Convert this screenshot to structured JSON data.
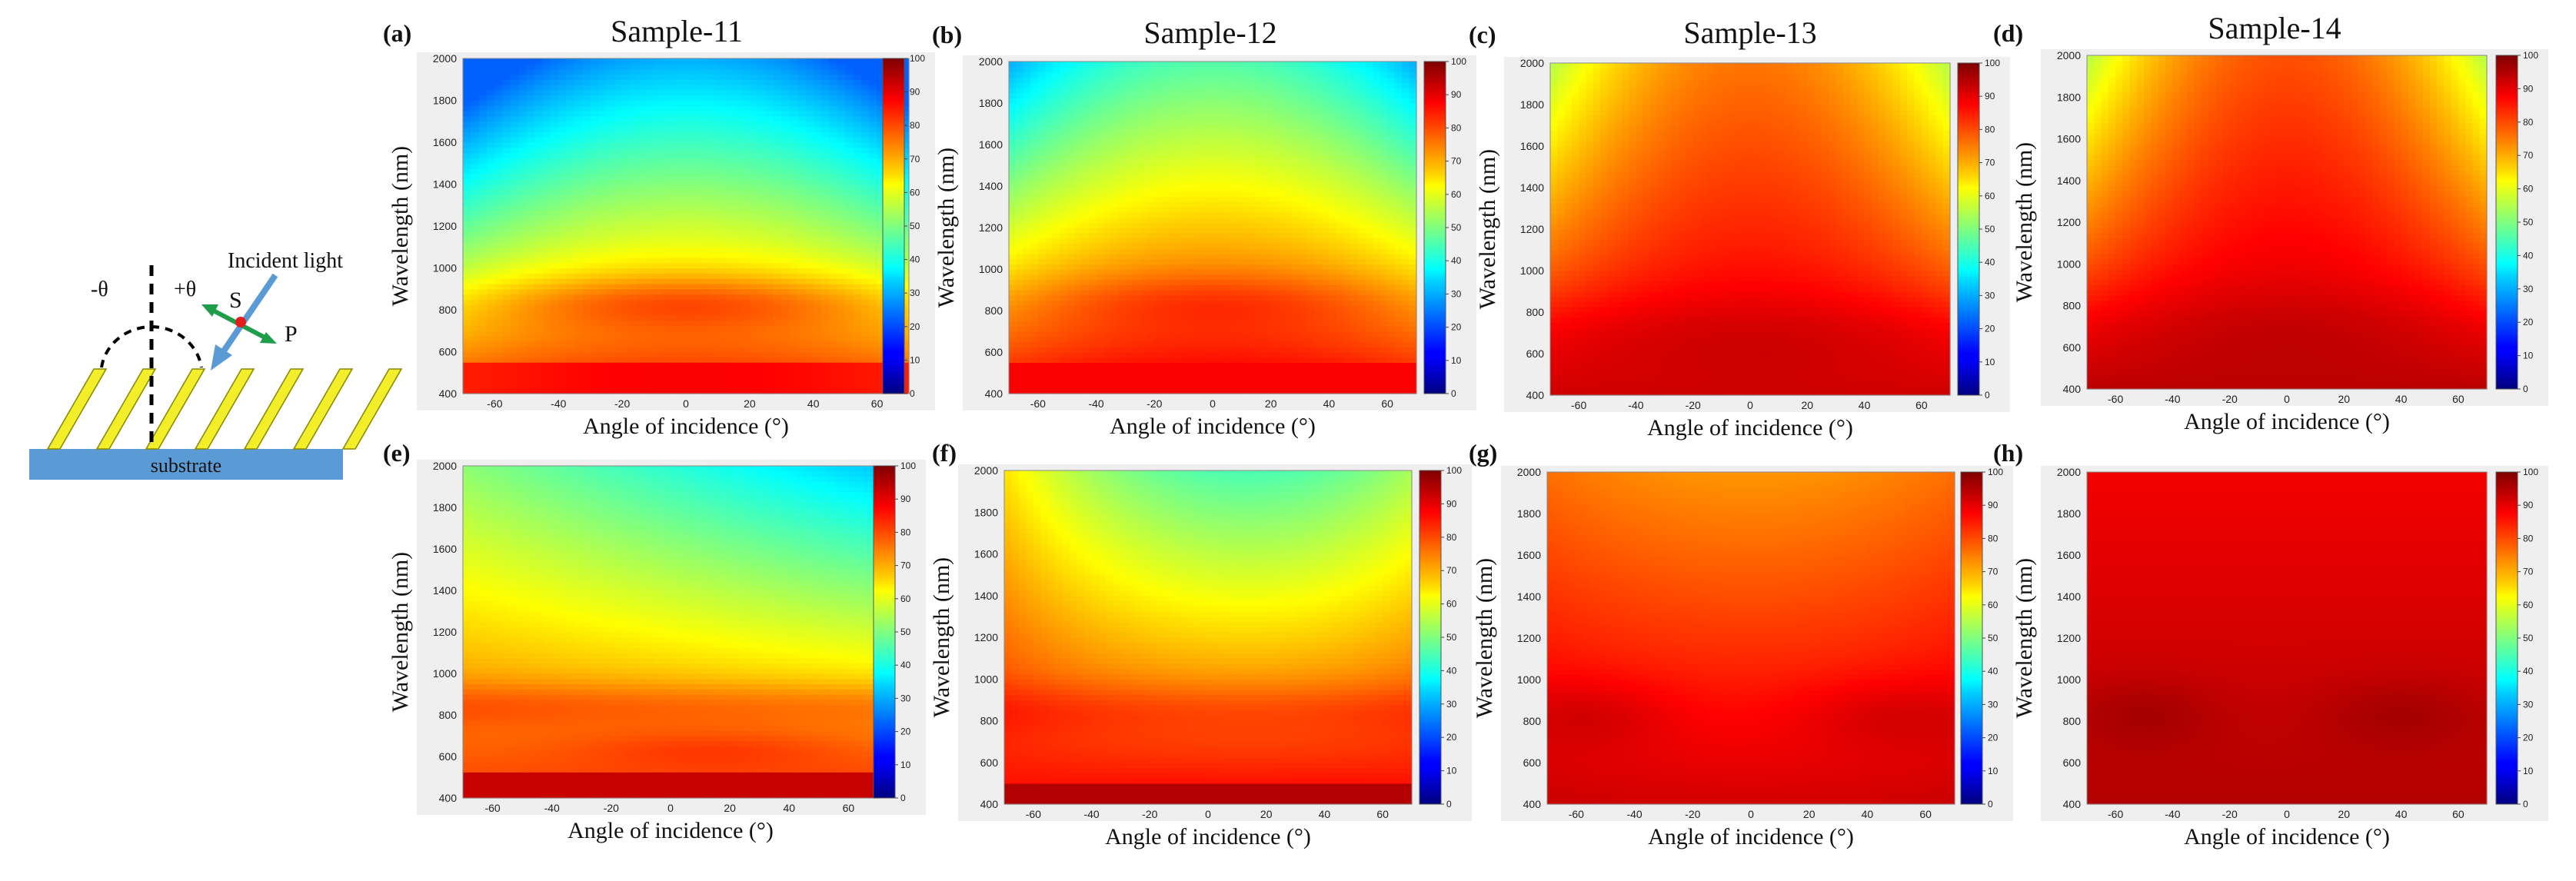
{
  "schematic": {
    "incident_light": "Incident light",
    "s_label": "S",
    "p_label": "P",
    "minus_theta": "-θ",
    "plus_theta": "+θ",
    "substrate": "substrate",
    "colors": {
      "rods": "#f2ee2a",
      "substrate": "#5b9bd5",
      "beam": "#5b9bd5",
      "arrows": "#1e9e4a",
      "dot": "#e01e1e"
    }
  },
  "colormap": {
    "name": "jet",
    "range": [
      0,
      100
    ],
    "ticks": [
      0,
      10,
      20,
      30,
      40,
      50,
      60,
      70,
      80,
      90,
      100
    ]
  },
  "chart_data": [
    {
      "panel": "(a)",
      "title": "Sample-11",
      "type": "heatmap",
      "xlabel": "Angle of incidence (°)",
      "ylabel": "Wavelength (nm)",
      "xlim": [
        -70,
        70
      ],
      "ylim": [
        400,
        2000
      ],
      "xticks": [
        -60,
        -40,
        -20,
        0,
        20,
        40,
        60
      ],
      "yticks": [
        400,
        600,
        800,
        1000,
        1200,
        1400,
        1600,
        1800,
        2000
      ],
      "colorbar_range": [
        0,
        100
      ],
      "model": "a"
    },
    {
      "panel": "(b)",
      "title": "Sample-12",
      "type": "heatmap",
      "xlabel": "Angle of incidence (°)",
      "ylabel": "Wavelength (nm)",
      "xlim": [
        -70,
        70
      ],
      "ylim": [
        400,
        2000
      ],
      "xticks": [
        -60,
        -40,
        -20,
        0,
        20,
        40,
        60
      ],
      "yticks": [
        400,
        600,
        800,
        1000,
        1200,
        1400,
        1600,
        1800,
        2000
      ],
      "colorbar_range": [
        0,
        100
      ],
      "model": "b"
    },
    {
      "panel": "(c)",
      "title": "Sample-13",
      "type": "heatmap",
      "xlabel": "Angle of incidence (°)",
      "ylabel": "Wavelength (nm)",
      "xlim": [
        -70,
        70
      ],
      "ylim": [
        400,
        2000
      ],
      "xticks": [
        -60,
        -40,
        -20,
        0,
        20,
        40,
        60
      ],
      "yticks": [
        400,
        600,
        800,
        1000,
        1200,
        1400,
        1600,
        1800,
        2000
      ],
      "colorbar_range": [
        0,
        100
      ],
      "model": "c"
    },
    {
      "panel": "(d)",
      "title": "Sample-14",
      "type": "heatmap",
      "xlabel": "Angle of incidence (°)",
      "ylabel": "Wavelength (nm)",
      "xlim": [
        -70,
        70
      ],
      "ylim": [
        400,
        2000
      ],
      "xticks": [
        -60,
        -40,
        -20,
        0,
        20,
        40,
        60
      ],
      "yticks": [
        400,
        600,
        800,
        1000,
        1200,
        1400,
        1600,
        1800,
        2000
      ],
      "colorbar_range": [
        0,
        100
      ],
      "model": "d"
    },
    {
      "panel": "(e)",
      "title": "",
      "type": "heatmap",
      "xlabel": "Angle of incidence (°)",
      "ylabel": "Wavelength (nm)",
      "xlim": [
        -70,
        70
      ],
      "ylim": [
        400,
        2000
      ],
      "xticks": [
        -60,
        -40,
        -20,
        0,
        20,
        40,
        60
      ],
      "yticks": [
        400,
        600,
        800,
        1000,
        1200,
        1400,
        1600,
        1800,
        2000
      ],
      "colorbar_range": [
        0,
        100
      ],
      "model": "e"
    },
    {
      "panel": "(f)",
      "title": "",
      "type": "heatmap",
      "xlabel": "Angle of incidence (°)",
      "ylabel": "Wavelength (nm)",
      "xlim": [
        -70,
        70
      ],
      "ylim": [
        400,
        2000
      ],
      "xticks": [
        -60,
        -40,
        -20,
        0,
        20,
        40,
        60
      ],
      "yticks": [
        400,
        600,
        800,
        1000,
        1200,
        1400,
        1600,
        1800,
        2000
      ],
      "colorbar_range": [
        0,
        100
      ],
      "model": "f"
    },
    {
      "panel": "(g)",
      "title": "",
      "type": "heatmap",
      "xlabel": "Angle of incidence (°)",
      "ylabel": "Wavelength (nm)",
      "xlim": [
        -70,
        70
      ],
      "ylim": [
        400,
        2000
      ],
      "xticks": [
        -60,
        -40,
        -20,
        0,
        20,
        40,
        60
      ],
      "yticks": [
        400,
        600,
        800,
        1000,
        1200,
        1400,
        1600,
        1800,
        2000
      ],
      "colorbar_range": [
        0,
        100
      ],
      "model": "g"
    },
    {
      "panel": "(h)",
      "title": "",
      "type": "heatmap",
      "xlabel": "Angle of incidence (°)",
      "ylabel": "Wavelength (nm)",
      "xlim": [
        -70,
        70
      ],
      "ylim": [
        400,
        2000
      ],
      "xticks": [
        -60,
        -40,
        -20,
        0,
        20,
        40,
        60
      ],
      "yticks": [
        400,
        600,
        800,
        1000,
        1200,
        1400,
        1600,
        1800,
        2000
      ],
      "colorbar_range": [
        0,
        100
      ],
      "model": "h"
    }
  ]
}
